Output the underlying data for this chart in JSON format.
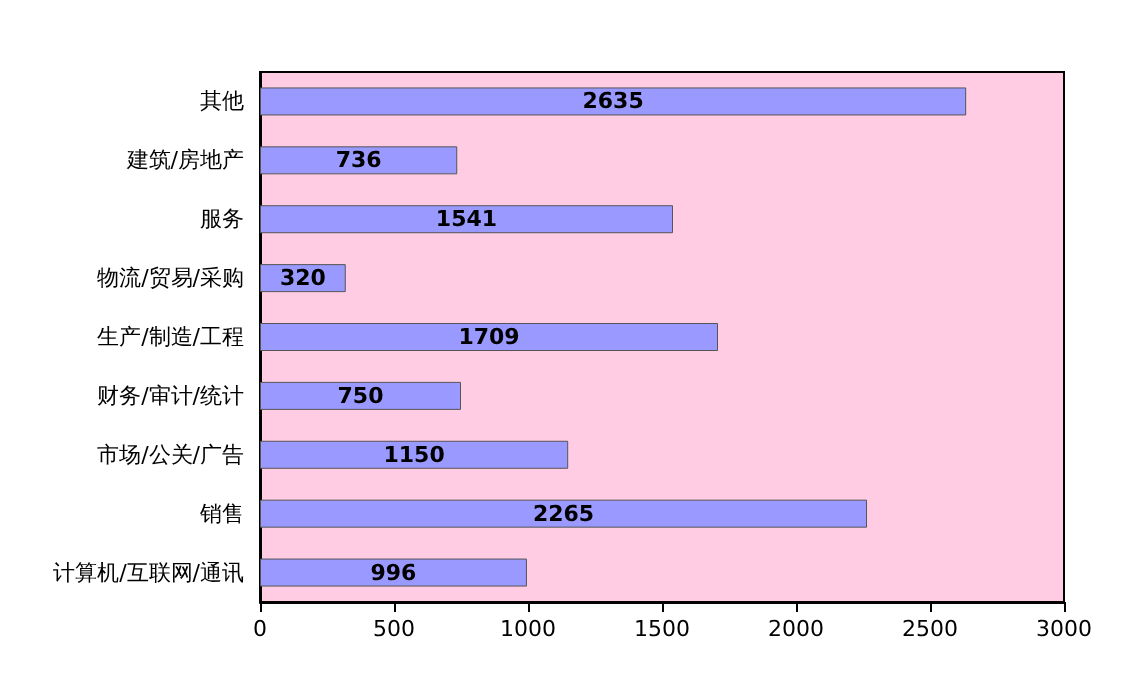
{
  "chart_data": {
    "type": "bar",
    "orientation": "horizontal",
    "categories": [
      "其他",
      "建筑/房地产",
      "服务",
      "物流/贸易/采购",
      "生产/制造/工程",
      "财务/审计/统计",
      "市场/公关/广告",
      "销售",
      "计算机/互联网/通讯"
    ],
    "values": [
      2635,
      736,
      1541,
      320,
      1709,
      750,
      1150,
      2265,
      996
    ],
    "color": "#9999ff",
    "xlim": [
      0,
      3000
    ],
    "xticks": [
      0,
      500,
      1000,
      1500,
      2000,
      2500,
      3000
    ],
    "grid": false,
    "data_labels": true
  }
}
